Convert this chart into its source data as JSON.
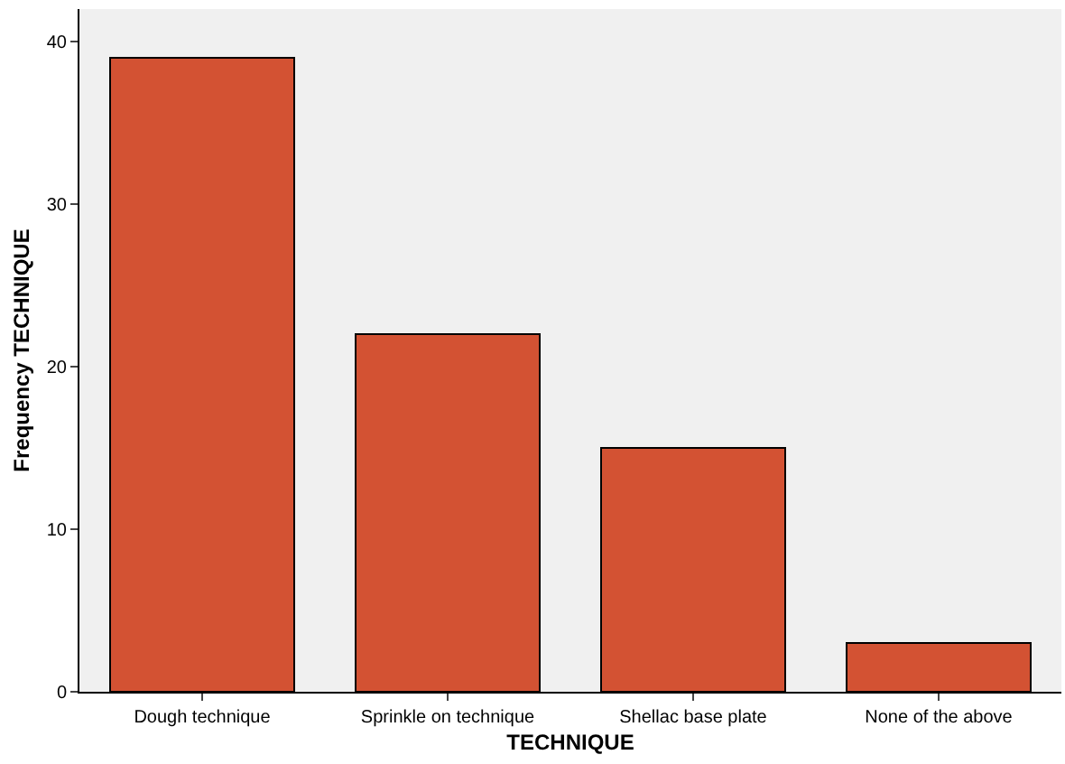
{
  "chart_data": {
    "type": "bar",
    "xlabel": "TECHNIQUE",
    "ylabel": "Frequency TECHNIQUE",
    "categories": [
      "Dough technique",
      "Sprinkle on technique",
      "Shellac base plate",
      "None of the above"
    ],
    "values": [
      39,
      22,
      15,
      3
    ],
    "color": "#d35233",
    "ylim": [
      0,
      42
    ],
    "yticks": [
      0,
      10,
      20,
      30,
      40
    ],
    "grid": false
  }
}
